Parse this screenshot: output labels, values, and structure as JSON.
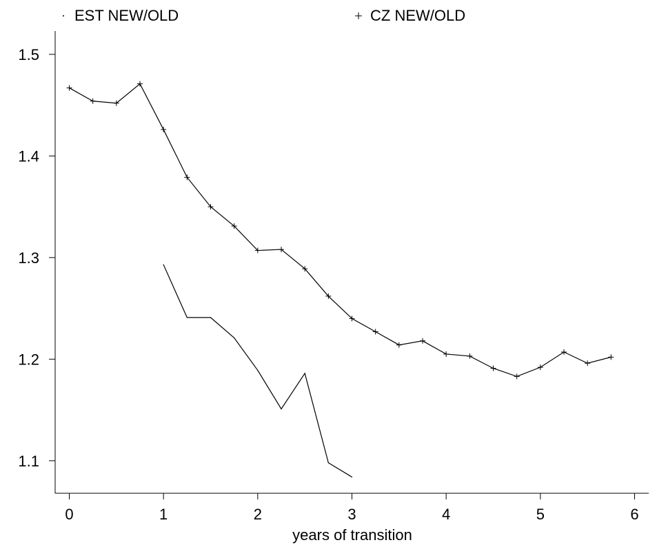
{
  "chart_data": {
    "type": "line",
    "title": "",
    "xlabel": "years of transition",
    "ylabel": "",
    "xlim": [
      -0.15,
      6.15
    ],
    "ylim": [
      1.068,
      1.523
    ],
    "xticks": [
      0,
      1,
      2,
      3,
      4,
      5,
      6
    ],
    "xtick_labels": [
      "0",
      "1",
      "2",
      "3",
      "4",
      "5",
      "6"
    ],
    "yticks": [
      1.1,
      1.2,
      1.3,
      1.4,
      1.5
    ],
    "ytick_labels": [
      "1.1",
      "1.2",
      "1.3",
      "1.4",
      "1.5"
    ],
    "grid": false,
    "legend_position": "top",
    "series": [
      {
        "name": "EST NEW/OLD",
        "marker": "dot",
        "x": [
          1,
          1.25,
          1.5,
          1.75,
          2,
          2.25,
          2.5,
          2.75,
          3
        ],
        "y": [
          1.293,
          1.241,
          1.241,
          1.221,
          1.189,
          1.151,
          1.186,
          1.098,
          1.084
        ]
      },
      {
        "name": "CZ NEW/OLD",
        "marker": "plus",
        "x": [
          0,
          0.25,
          0.5,
          0.75,
          1,
          1.25,
          1.5,
          1.75,
          2,
          2.25,
          2.5,
          2.75,
          3,
          3.25,
          3.5,
          3.75,
          4,
          4.25,
          4.5,
          4.75,
          5,
          5.25,
          5.5,
          5.75
        ],
        "y": [
          1.467,
          1.454,
          1.452,
          1.471,
          1.426,
          1.379,
          1.35,
          1.331,
          1.307,
          1.308,
          1.289,
          1.262,
          1.24,
          1.227,
          1.214,
          1.218,
          1.205,
          1.203,
          1.191,
          1.183,
          1.192,
          1.207,
          1.196,
          1.202
        ]
      }
    ]
  }
}
